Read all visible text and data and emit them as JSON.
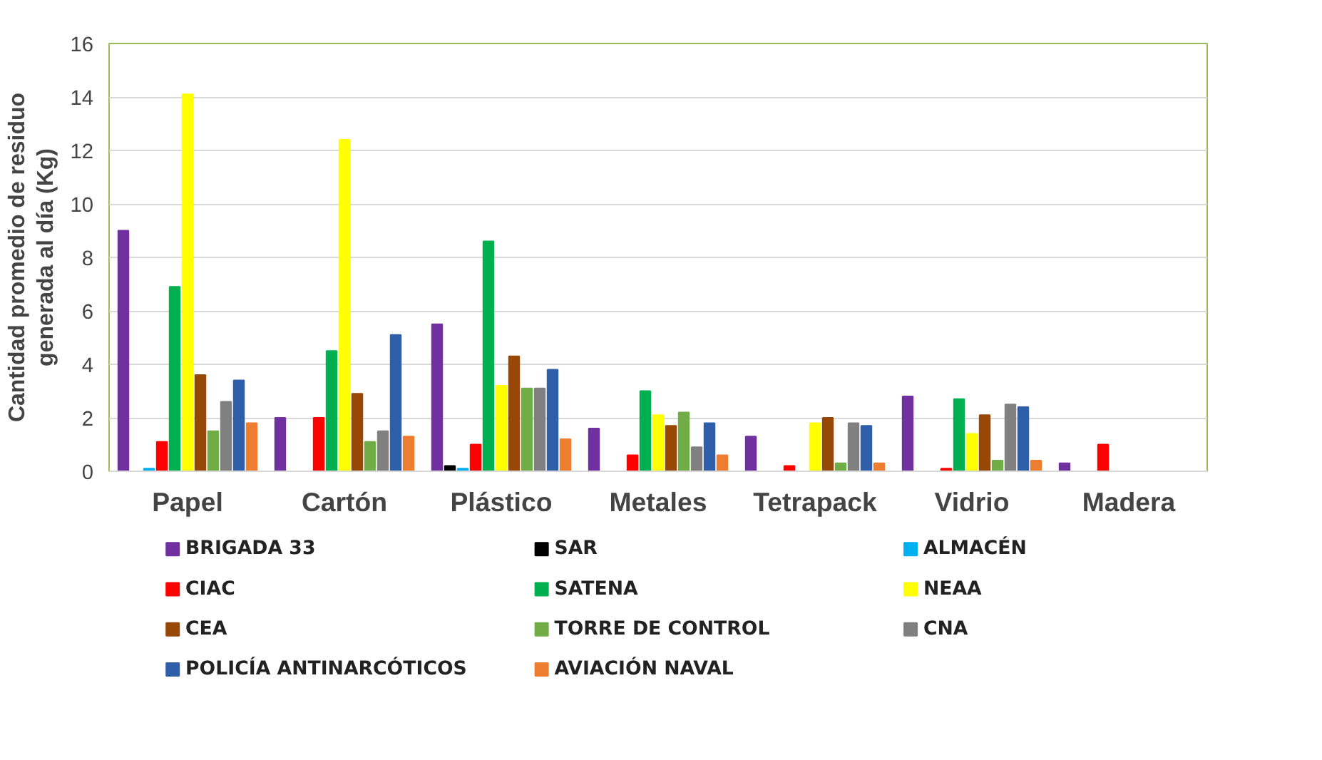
{
  "chart_data": {
    "type": "bar",
    "ylabel": "Cantidad promedio de residuo\ngenerada al día (Kg)",
    "categories": [
      "Papel",
      "Cartón",
      "Plástico",
      "Metales",
      "Tetrapack",
      "Vidrio",
      "Madera"
    ],
    "ylim": [
      0,
      16
    ],
    "yticks": [
      0,
      2,
      4,
      6,
      8,
      10,
      12,
      14,
      16
    ],
    "grid": "y",
    "legend": "bottom",
    "series": [
      {
        "name": "BRIGADA 33",
        "color": "#7030a0",
        "values": [
          9.0,
          2.0,
          5.5,
          1.6,
          1.3,
          2.8,
          0.3
        ]
      },
      {
        "name": "SAR",
        "color": "#000000",
        "values": [
          null,
          null,
          0.2,
          null,
          null,
          null,
          null
        ]
      },
      {
        "name": "ALMACÉN",
        "color": "#00b0f0",
        "values": [
          0.1,
          null,
          0.1,
          null,
          null,
          null,
          null
        ]
      },
      {
        "name": "CIAC",
        "color": "#ff0000",
        "values": [
          1.1,
          2.0,
          1.0,
          0.6,
          0.2,
          0.1,
          1.0
        ]
      },
      {
        "name": "SATENA",
        "color": "#00b050",
        "values": [
          6.9,
          4.5,
          8.6,
          3.0,
          null,
          2.7,
          null
        ]
      },
      {
        "name": "NEAA",
        "color": "#ffff00",
        "values": [
          14.1,
          12.4,
          3.2,
          2.1,
          1.8,
          1.4,
          null
        ]
      },
      {
        "name": "CEA",
        "color": "#974706",
        "values": [
          3.6,
          2.9,
          4.3,
          1.7,
          2.0,
          2.1,
          null
        ]
      },
      {
        "name": "TORRE DE CONTROL",
        "color": "#70ad47",
        "values": [
          1.5,
          1.1,
          3.1,
          2.2,
          0.3,
          0.4,
          null
        ]
      },
      {
        "name": "CNA",
        "color": "#808080",
        "values": [
          2.6,
          1.5,
          3.1,
          0.9,
          1.8,
          2.5,
          null
        ]
      },
      {
        "name": "POLICÍA ANTINARCÓTICOS",
        "color": "#2e5fa8",
        "values": [
          3.4,
          5.1,
          3.8,
          1.8,
          1.7,
          2.4,
          null
        ]
      },
      {
        "name": "AVIACIÓN NAVAL",
        "color": "#ed7d31",
        "values": [
          1.8,
          1.3,
          1.2,
          0.6,
          0.3,
          0.4,
          null
        ]
      }
    ]
  }
}
